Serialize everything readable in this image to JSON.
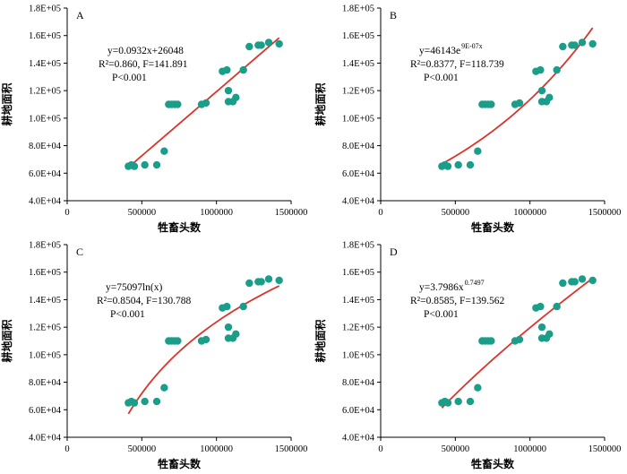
{
  "chart_data": [
    {
      "type": "scatter",
      "panel_label": "A",
      "xlabel": "牲畜头数",
      "ylabel": "耕地面积",
      "xlim": [
        0,
        1500000
      ],
      "ylim": [
        40000,
        180000
      ],
      "xticks": [
        "0",
        "500000",
        "1000000",
        "1500000"
      ],
      "yticks": [
        "4.0E+04",
        "6.0E+04",
        "8.0E+04",
        "1.0E+05",
        "1.2E+05",
        "1.4E+05",
        "1.6E+05",
        "1.8E+05"
      ],
      "annotations": [
        "y=0.0932x+26048",
        "R²=0.860, F=141.891",
        "P<0.001"
      ],
      "fit": {
        "model": "linear",
        "a": 0.0932,
        "b": 26048,
        "x_range": [
          410000,
          1420000
        ]
      },
      "grid": false,
      "marker_color": "#1a9e8a",
      "line_color": "#d9352b",
      "x": [
        410000,
        430000,
        450000,
        520000,
        600000,
        650000,
        680000,
        700000,
        720000,
        740000,
        900000,
        930000,
        1040000,
        1070000,
        1080000,
        1080000,
        1110000,
        1130000,
        1180000,
        1220000,
        1280000,
        1300000,
        1350000,
        1420000
      ],
      "y": [
        65000,
        66000,
        65000,
        66000,
        66000,
        76000,
        110000,
        110000,
        110000,
        110000,
        110000,
        111000,
        134000,
        135000,
        112000,
        120000,
        112000,
        115000,
        135000,
        152000,
        153000,
        153000,
        155000,
        154000
      ]
    },
    {
      "type": "scatter",
      "panel_label": "B",
      "xlabel": "牲畜头数",
      "ylabel": "耕地面积",
      "xlim": [
        0,
        1500000
      ],
      "ylim": [
        40000,
        180000
      ],
      "xticks": [
        "0",
        "500000",
        "1000000",
        "1500000"
      ],
      "yticks": [
        "4.0E+04",
        "6.0E+04",
        "8.0E+04",
        "1.0E+05",
        "1.2E+05",
        "1.4E+05",
        "1.6E+05",
        "1.8E+05"
      ],
      "annotations": [
        "y=46143e",
        "9E-07x",
        "R²=0.8377, F=118.739",
        "P<0.001"
      ],
      "fit": {
        "model": "exponential",
        "a": 46143,
        "b": 9e-07,
        "x_range": [
          410000,
          1420000
        ]
      },
      "grid": false,
      "marker_color": "#1a9e8a",
      "line_color": "#d9352b",
      "x": [
        410000,
        430000,
        450000,
        520000,
        600000,
        650000,
        680000,
        700000,
        720000,
        740000,
        900000,
        930000,
        1040000,
        1070000,
        1080000,
        1080000,
        1110000,
        1130000,
        1180000,
        1220000,
        1280000,
        1300000,
        1350000,
        1420000
      ],
      "y": [
        65000,
        66000,
        65000,
        66000,
        66000,
        76000,
        110000,
        110000,
        110000,
        110000,
        110000,
        111000,
        134000,
        135000,
        112000,
        120000,
        112000,
        115000,
        135000,
        152000,
        153000,
        153000,
        155000,
        154000
      ]
    },
    {
      "type": "scatter",
      "panel_label": "C",
      "xlabel": "牲畜头数",
      "ylabel": "耕地面积",
      "xlim": [
        0,
        1500000
      ],
      "ylim": [
        40000,
        180000
      ],
      "xticks": [
        "0",
        "500000",
        "1000000",
        "1500000"
      ],
      "yticks": [
        "4.0E+04",
        "6.0E+04",
        "8.0E+04",
        "1.0E+05",
        "1.2E+05",
        "1.4E+05",
        "1.6E+05",
        "1.8E+05"
      ],
      "annotations": [
        "y=75097ln(x)",
        "R²=0.8504, F=130.788",
        "P<0.001"
      ],
      "fit": {
        "model": "log",
        "x_range": [
          410000,
          1420000
        ],
        "y_range": [
          57000,
          150000
        ]
      },
      "grid": false,
      "marker_color": "#1a9e8a",
      "line_color": "#d9352b",
      "x": [
        410000,
        430000,
        450000,
        520000,
        600000,
        650000,
        680000,
        700000,
        720000,
        740000,
        900000,
        930000,
        1040000,
        1070000,
        1080000,
        1080000,
        1110000,
        1130000,
        1180000,
        1220000,
        1280000,
        1300000,
        1350000,
        1420000
      ],
      "y": [
        65000,
        66000,
        65000,
        66000,
        66000,
        76000,
        110000,
        110000,
        110000,
        110000,
        110000,
        111000,
        134000,
        135000,
        112000,
        120000,
        112000,
        115000,
        135000,
        152000,
        153000,
        153000,
        155000,
        154000
      ]
    },
    {
      "type": "scatter",
      "panel_label": "D",
      "xlabel": "牲畜头数",
      "ylabel": "耕地面积",
      "xlim": [
        0,
        1500000
      ],
      "ylim": [
        40000,
        180000
      ],
      "xticks": [
        "0",
        "500000",
        "1000000",
        "1500000"
      ],
      "yticks": [
        "4.0E+04",
        "6.0E+04",
        "8.0E+04",
        "1.0E+05",
        "1.2E+05",
        "1.4E+05",
        "1.6E+05",
        "1.8E+05"
      ],
      "annotations": [
        "y=3.7986x",
        "0.7497",
        "R²=0.8585, F=139.562",
        "P<0.001"
      ],
      "fit": {
        "model": "power",
        "a": 3.7986,
        "b": 0.7497,
        "x_range": [
          410000,
          1420000
        ]
      },
      "grid": false,
      "marker_color": "#1a9e8a",
      "line_color": "#d9352b",
      "x": [
        410000,
        430000,
        450000,
        520000,
        600000,
        650000,
        680000,
        700000,
        720000,
        740000,
        900000,
        930000,
        1040000,
        1070000,
        1080000,
        1080000,
        1110000,
        1130000,
        1180000,
        1220000,
        1280000,
        1300000,
        1350000,
        1420000
      ],
      "y": [
        65000,
        66000,
        65000,
        66000,
        66000,
        76000,
        110000,
        110000,
        110000,
        110000,
        110000,
        111000,
        134000,
        135000,
        112000,
        120000,
        112000,
        115000,
        135000,
        152000,
        153000,
        153000,
        155000,
        154000
      ]
    }
  ]
}
